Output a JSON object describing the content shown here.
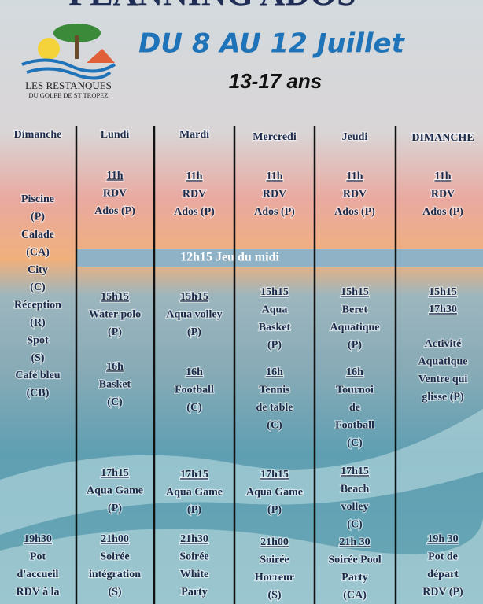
{
  "header": {
    "title": "PLANNING ADOS",
    "dates": "DU 8 AU 12 Juillet",
    "age": "13-17 ans"
  },
  "logo": {
    "name": "LES RESTANQUES",
    "place": "DU GOLFE DE ST TROPEZ"
  },
  "banner": "12h15 Jeu du midi",
  "columns": [
    {
      "day": "Dimanche",
      "blocks": [
        {
          "lines": [
            "Piscine",
            "(P)",
            "Calade",
            "(CA)",
            "City",
            "(C)",
            "Réception",
            "(R)",
            "Spot",
            "(S)",
            "Café bleu",
            "(CB)"
          ]
        },
        {
          "lines": [
            "19h30",
            "Pot",
            "d'accueil",
            "RDV à la"
          ]
        }
      ]
    },
    {
      "day": "Lundi",
      "blocks": [
        {
          "lines": [
            "11h",
            "RDV",
            "Ados (P)"
          ]
        },
        {
          "lines": [
            "15h15",
            "Water polo",
            "(P)"
          ]
        },
        {
          "lines": [
            "16h",
            "Basket",
            "(C)"
          ]
        },
        {
          "lines": [
            "17h15",
            "Aqua Game",
            "(P)"
          ]
        },
        {
          "lines": [
            "21h00",
            "Soirée",
            "intégration",
            "(S)"
          ]
        }
      ]
    },
    {
      "day": "Mardi",
      "blocks": [
        {
          "lines": [
            "11h",
            "RDV",
            "Ados (P)"
          ]
        },
        {
          "lines": [
            "15h15",
            "Aqua volley",
            "(P)"
          ]
        },
        {
          "lines": [
            "16h",
            "Football",
            "(C)"
          ]
        },
        {
          "lines": [
            "17h15",
            "Aqua Game",
            "(P)"
          ]
        },
        {
          "lines": [
            "21h30",
            "Soirée",
            "White",
            "Party"
          ]
        }
      ]
    },
    {
      "day": "Mercredi",
      "blocks": [
        {
          "lines": [
            "11h",
            "RDV",
            "Ados (P)"
          ]
        },
        {
          "lines": [
            "15h15",
            "Aqua",
            "Basket",
            "(P)"
          ]
        },
        {
          "lines": [
            "16h",
            "Tennis",
            "de table",
            "(C)"
          ]
        },
        {
          "lines": [
            "17h15",
            "Aqua Game",
            "(P)"
          ]
        },
        {
          "lines": [
            "21h00",
            "Soirée",
            "Horreur",
            "(S)"
          ]
        }
      ]
    },
    {
      "day": "Jeudi",
      "blocks": [
        {
          "lines": [
            "11h",
            "RDV",
            "Ados (P)"
          ]
        },
        {
          "lines": [
            "15h15",
            "Beret",
            "Aquatique",
            "(P)"
          ]
        },
        {
          "lines": [
            "16h",
            "Tournoi",
            "de",
            "Football",
            "(C)"
          ]
        },
        {
          "lines": [
            "17h15",
            "Beach",
            "volley",
            "(C)"
          ]
        },
        {
          "lines": [
            "21h 30",
            "Soirée Pool",
            "Party",
            "(CA)"
          ]
        }
      ]
    },
    {
      "day": "DIMANCHE",
      "blocks": [
        {
          "lines": [
            "11h",
            "RDV",
            "Ados (P)"
          ]
        },
        {
          "lines": [
            "15h15"
          ]
        },
        {
          "lines": [
            "17h30"
          ]
        },
        {
          "lines": [
            "Activité",
            "Aquatique",
            "Ventre qui",
            "glisse (P)"
          ]
        },
        {
          "lines": [
            "19h 30",
            "Pot de",
            "départ",
            "RDV (P)"
          ]
        }
      ]
    }
  ]
}
